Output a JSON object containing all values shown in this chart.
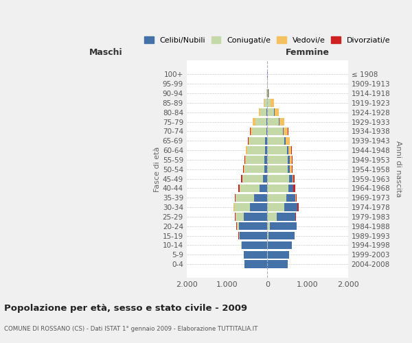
{
  "age_groups": [
    "0-4",
    "5-9",
    "10-14",
    "15-19",
    "20-24",
    "25-29",
    "30-34",
    "35-39",
    "40-44",
    "45-49",
    "50-54",
    "55-59",
    "60-64",
    "65-69",
    "70-74",
    "75-79",
    "80-84",
    "85-89",
    "90-94",
    "95-99",
    "100+"
  ],
  "birth_years": [
    "2004-2008",
    "1999-2003",
    "1994-1998",
    "1989-1993",
    "1984-1988",
    "1979-1983",
    "1974-1978",
    "1969-1973",
    "1964-1968",
    "1959-1963",
    "1954-1958",
    "1949-1953",
    "1944-1948",
    "1939-1943",
    "1934-1938",
    "1929-1933",
    "1924-1928",
    "1919-1923",
    "1914-1918",
    "1909-1913",
    "≤ 1908"
  ],
  "males_celibi": [
    560,
    580,
    640,
    680,
    700,
    590,
    430,
    320,
    200,
    110,
    80,
    70,
    55,
    50,
    30,
    20,
    15,
    8,
    4,
    2,
    2
  ],
  "males_coniugati": [
    3,
    5,
    10,
    30,
    60,
    200,
    400,
    460,
    490,
    510,
    490,
    470,
    450,
    390,
    350,
    280,
    160,
    70,
    15,
    5,
    2
  ],
  "males_vedovi": [
    0,
    0,
    0,
    0,
    1,
    1,
    1,
    2,
    3,
    5,
    8,
    10,
    20,
    30,
    40,
    60,
    40,
    20,
    5,
    2,
    0
  ],
  "males_divorziati": [
    0,
    0,
    0,
    2,
    5,
    10,
    15,
    20,
    35,
    25,
    20,
    15,
    8,
    5,
    5,
    3,
    0,
    0,
    0,
    0,
    0
  ],
  "females_nubili": [
    510,
    540,
    600,
    640,
    650,
    470,
    330,
    220,
    120,
    80,
    55,
    50,
    35,
    30,
    20,
    15,
    12,
    8,
    4,
    2,
    2
  ],
  "females_coniugate": [
    3,
    5,
    12,
    35,
    70,
    230,
    420,
    480,
    520,
    540,
    510,
    510,
    490,
    420,
    380,
    290,
    170,
    80,
    20,
    5,
    2
  ],
  "females_vedove": [
    0,
    0,
    0,
    1,
    1,
    2,
    3,
    5,
    10,
    20,
    35,
    50,
    70,
    100,
    110,
    120,
    110,
    80,
    30,
    10,
    3
  ],
  "females_divorziate": [
    0,
    0,
    0,
    2,
    5,
    10,
    20,
    30,
    40,
    35,
    25,
    20,
    12,
    8,
    5,
    3,
    0,
    0,
    0,
    0,
    0
  ],
  "color_celibi_nubili": "#4472a8",
  "color_coniugati_e": "#c5d9a8",
  "color_vedovi_e": "#f5c060",
  "color_divorziati_e": "#cc2222",
  "xlim": 2000,
  "title": "Popolazione per età, sesso e stato civile - 2009",
  "subtitle": "COMUNE DI ROSSANO (CS) - Dati ISTAT 1° gennaio 2009 - Elaborazione TUTTITALIA.IT",
  "ylabel_left": "Fasce di età",
  "ylabel_right": "Anni di nascita",
  "label_maschi": "Maschi",
  "label_femmine": "Femmine",
  "legend_labels": [
    "Celibi/Nubili",
    "Coniugati/e",
    "Vedovi/e",
    "Divorziati/e"
  ],
  "bg_color": "#f0f0f0",
  "plot_bg_color": "#ffffff",
  "xtick_labels": [
    "2.000",
    "1.000",
    "0",
    "1.000",
    "2.000"
  ]
}
